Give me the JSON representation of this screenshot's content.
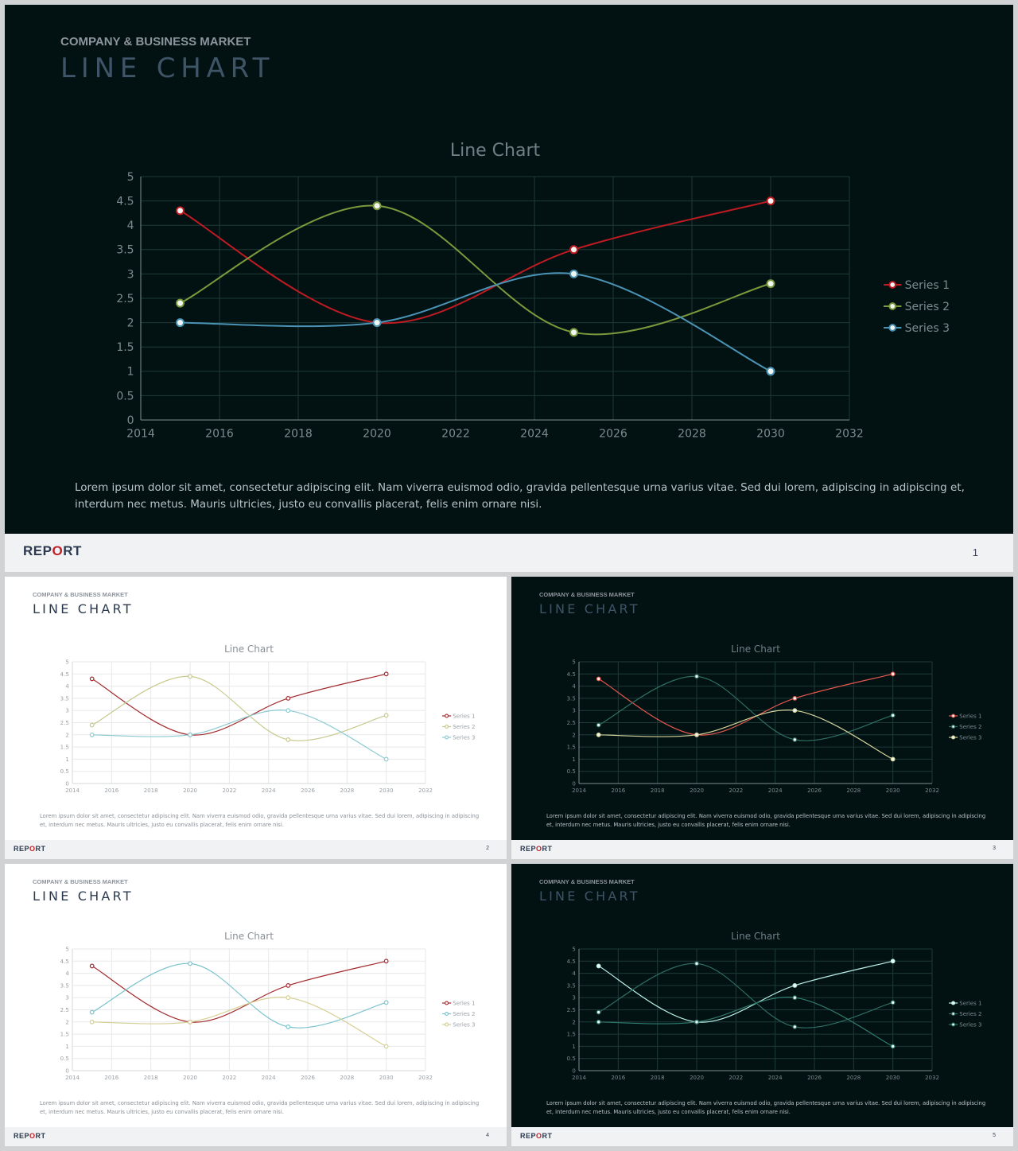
{
  "slides": [
    {
      "eyebrow": "COMPANY & BUSINESS MARKET",
      "title": "LINE CHART",
      "brand_prefix": "REP",
      "brand_o": "O",
      "brand_suffix": "RT",
      "page": "1",
      "body": "Lorem ipsum dolor sit amet, consectetur adipiscing elit. Nam viverra euismod odio, gravida pellentesque urna varius vitae. Sed dui lorem, adipiscing in adipiscing et, interdum nec metus. Mauris ultricies, justo eu convallis placerat, felis enim ornare nisi."
    },
    {
      "eyebrow": "COMPANY & BUSINESS MARKET",
      "title": "LINE CHART",
      "brand_prefix": "REP",
      "brand_o": "O",
      "brand_suffix": "RT",
      "page": "2",
      "body": "Lorem ipsum dolor sit amet, consectetur adipiscing elit. Nam viverra euismod odio, gravida pellentesque urna varius vitae. Sed dui lorem, adipiscing in adipiscing et, interdum nec metus. Mauris ultricies, justo eu convallis placerat, felis enim ornare nisi."
    },
    {
      "eyebrow": "COMPANY & BUSINESS MARKET",
      "title": "LINE CHART",
      "brand_prefix": "REP",
      "brand_o": "O",
      "brand_suffix": "RT",
      "page": "3",
      "body": "Lorem ipsum dolor sit amet, consectetur adipiscing elit. Nam viverra euismod odio, gravida pellentesque urna varius vitae. Sed dui lorem, adipiscing in adipiscing et, interdum nec metus. Mauris ultricies, justo eu convallis placerat, felis enim ornare nisi."
    },
    {
      "eyebrow": "COMPANY & BUSINESS MARKET",
      "title": "LINE CHART",
      "brand_prefix": "REP",
      "brand_o": "O",
      "brand_suffix": "RT",
      "page": "4",
      "body": "Lorem ipsum dolor sit amet, consectetur adipiscing elit. Nam viverra euismod odio, gravida pellentesque urna varius vitae. Sed dui lorem, adipiscing in adipiscing et, interdum nec metus. Mauris ultricies, justo eu convallis placerat, felis enim ornare nisi."
    },
    {
      "eyebrow": "COMPANY & BUSINESS MARKET",
      "title": "LINE CHART",
      "brand_prefix": "REP",
      "brand_o": "O",
      "brand_suffix": "RT",
      "page": "5",
      "body": "Lorem ipsum dolor sit amet, consectetur adipiscing elit. Nam viverra euismod odio, gravida pellentesque urna varius vitae. Sed dui lorem, adipiscing in adipiscing et, interdum nec metus. Mauris ultricies, justo eu convallis placerat, felis enim ornare nisi."
    }
  ],
  "chart_data": [
    {
      "type": "line",
      "title": "Line Chart",
      "theme": "dark",
      "x": [
        2015,
        2020,
        2025,
        2030
      ],
      "xlim": [
        2014,
        2032
      ],
      "xticks": [
        2014,
        2016,
        2018,
        2020,
        2022,
        2024,
        2026,
        2028,
        2030,
        2032
      ],
      "ylim": [
        0,
        5
      ],
      "yticks": [
        0,
        0.5,
        1,
        1.5,
        2,
        2.5,
        3,
        3.5,
        4,
        4.5,
        5
      ],
      "grid": true,
      "legend": "right",
      "series": [
        {
          "name": "Series 1",
          "values": [
            4.3,
            2,
            3.5,
            4.5
          ],
          "color": "#c01a22"
        },
        {
          "name": "Series 2",
          "values": [
            2.4,
            4.4,
            1.8,
            2.8
          ],
          "color": "#7a9a3c"
        },
        {
          "name": "Series 3",
          "values": [
            2,
            2,
            3,
            1
          ],
          "color": "#4a93b5"
        }
      ]
    },
    {
      "type": "line",
      "title": "Line Chart",
      "theme": "light",
      "x": [
        2015,
        2020,
        2025,
        2030
      ],
      "xlim": [
        2014,
        2032
      ],
      "xticks": [
        2014,
        2016,
        2018,
        2020,
        2022,
        2024,
        2026,
        2028,
        2030,
        2032
      ],
      "ylim": [
        0,
        5
      ],
      "yticks": [
        0,
        0.5,
        1,
        1.5,
        2,
        2.5,
        3,
        3.5,
        4,
        4.5,
        5
      ],
      "grid": true,
      "legend": "right",
      "series": [
        {
          "name": "Series 1",
          "values": [
            4.3,
            2,
            3.5,
            4.5
          ],
          "color": "#a32a2e"
        },
        {
          "name": "Series 2",
          "values": [
            2.4,
            4.4,
            1.8,
            2.8
          ],
          "color": "#c8c98e"
        },
        {
          "name": "Series 3",
          "values": [
            2,
            2,
            3,
            1
          ],
          "color": "#8ccbd2"
        }
      ]
    },
    {
      "type": "line",
      "title": "Line Chart",
      "theme": "dark",
      "x": [
        2015,
        2020,
        2025,
        2030
      ],
      "xlim": [
        2014,
        2032
      ],
      "xticks": [
        2014,
        2016,
        2018,
        2020,
        2022,
        2024,
        2026,
        2028,
        2030,
        2032
      ],
      "ylim": [
        0,
        5
      ],
      "yticks": [
        0,
        0.5,
        1,
        1.5,
        2,
        2.5,
        3,
        3.5,
        4,
        4.5,
        5
      ],
      "grid": true,
      "legend": "right",
      "series": [
        {
          "name": "Series 1",
          "values": [
            4.3,
            2,
            3.5,
            4.5
          ],
          "color": "#e2574f"
        },
        {
          "name": "Series 2",
          "values": [
            2.4,
            4.4,
            1.8,
            2.8
          ],
          "color": "#2f6f63"
        },
        {
          "name": "Series 3",
          "values": [
            2,
            2,
            3,
            1
          ],
          "color": "#d3d39a"
        }
      ]
    },
    {
      "type": "line",
      "title": "Line Chart",
      "theme": "light",
      "x": [
        2015,
        2020,
        2025,
        2030
      ],
      "xlim": [
        2014,
        2032
      ],
      "xticks": [
        2014,
        2016,
        2018,
        2020,
        2022,
        2024,
        2026,
        2028,
        2030,
        2032
      ],
      "ylim": [
        0,
        5
      ],
      "yticks": [
        0,
        0.5,
        1,
        1.5,
        2,
        2.5,
        3,
        3.5,
        4,
        4.5,
        5
      ],
      "grid": true,
      "legend": "right",
      "series": [
        {
          "name": "Series 1",
          "values": [
            4.3,
            2,
            3.5,
            4.5
          ],
          "color": "#a32a2e"
        },
        {
          "name": "Series 2",
          "values": [
            2.4,
            4.4,
            1.8,
            2.8
          ],
          "color": "#7cc3cc"
        },
        {
          "name": "Series 3",
          "values": [
            2,
            2,
            3,
            1
          ],
          "color": "#d6cf95"
        }
      ]
    },
    {
      "type": "line",
      "title": "Line Chart",
      "theme": "dark",
      "x": [
        2015,
        2020,
        2025,
        2030
      ],
      "xlim": [
        2014,
        2032
      ],
      "xticks": [
        2014,
        2016,
        2018,
        2020,
        2022,
        2024,
        2026,
        2028,
        2030,
        2032
      ],
      "ylim": [
        0,
        5
      ],
      "yticks": [
        0,
        0.5,
        1,
        1.5,
        2,
        2.5,
        3,
        3.5,
        4,
        4.5,
        5
      ],
      "grid": true,
      "legend": "right",
      "series": [
        {
          "name": "Series 1",
          "values": [
            4.3,
            2,
            3.5,
            4.5
          ],
          "color": "#b9efe7"
        },
        {
          "name": "Series 2",
          "values": [
            2.4,
            4.4,
            1.8,
            2.8
          ],
          "color": "#2e6d63"
        },
        {
          "name": "Series 3",
          "values": [
            2,
            2,
            3,
            1
          ],
          "color": "#2f7a6d"
        }
      ]
    }
  ]
}
